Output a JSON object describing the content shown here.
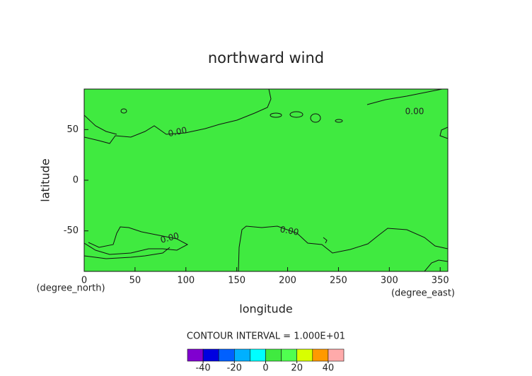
{
  "chart_data": {
    "type": "contour",
    "title": "northward wind",
    "x_label": "longitude",
    "x_units": "(degree_east)",
    "y_label": "latitude",
    "y_units": "(degree_north)",
    "xlim": [
      0,
      357.5
    ],
    "xticks": [
      0,
      50,
      100,
      150,
      200,
      250,
      300,
      350
    ],
    "ylim": [
      -90,
      90
    ],
    "yticks": [
      -50,
      0,
      50
    ],
    "contours": [
      {
        "level": 0,
        "label": "0.00"
      }
    ],
    "contour_interval": "CONTOUR INTERVAL = 1.000E+01",
    "colorbar": {
      "levels": [
        -50,
        -40,
        -30,
        -20,
        -10,
        0,
        10,
        20,
        30,
        40,
        50
      ],
      "ticks": [
        -40,
        -20,
        0,
        20,
        40
      ],
      "colors": [
        "#8000d0",
        "#0000e0",
        "#0060ff",
        "#00b0ff",
        "#00ffff",
        "#40ea40",
        "#50ff50",
        "#d8ff00",
        "#ff9900",
        "#ffaaaa"
      ]
    }
  }
}
